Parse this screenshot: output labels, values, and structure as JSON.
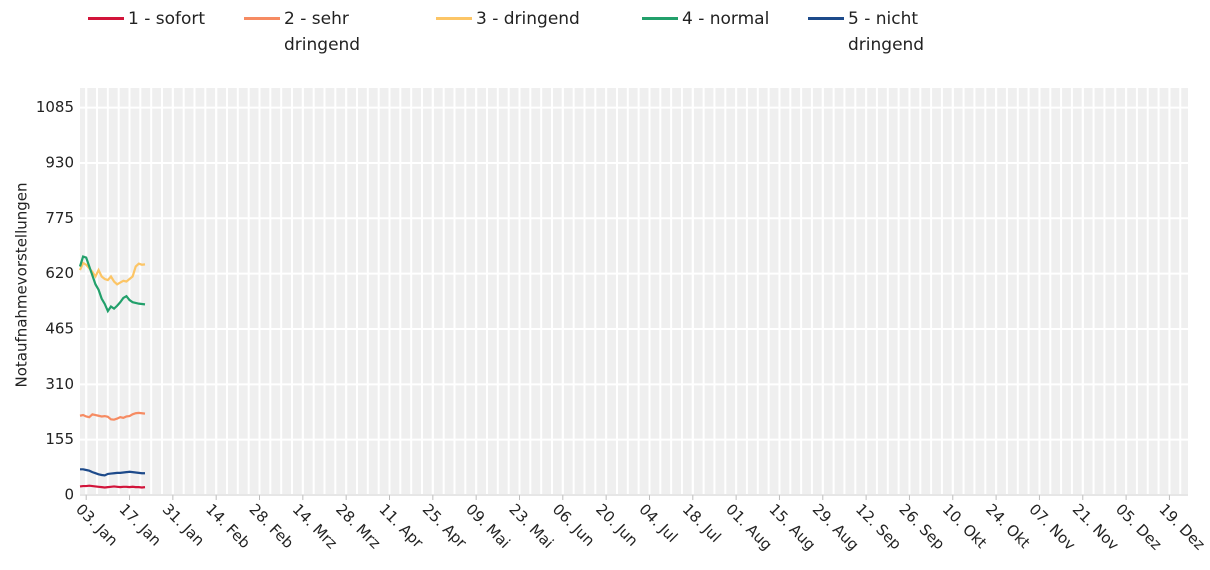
{
  "chart_data": {
    "type": "line",
    "y_label": "Notaufnahmevorstellungen",
    "x": [
      1,
      2,
      3,
      4,
      5,
      6,
      7,
      8,
      9,
      10,
      11,
      12,
      13,
      14,
      15,
      16,
      17,
      18,
      19,
      20,
      21,
      22
    ],
    "series": [
      {
        "name": "1 - sofort",
        "color": "#d2143a",
        "values": [
          24,
          25,
          25,
          26,
          25,
          24,
          23,
          22,
          21,
          22,
          23,
          24,
          23,
          22,
          23,
          23,
          22,
          23,
          22,
          22,
          21,
          22
        ]
      },
      {
        "name": "2 - sehr dringend",
        "color": "#f68b62",
        "values": [
          222,
          224,
          220,
          218,
          226,
          224,
          222,
          220,
          221,
          219,
          212,
          211,
          214,
          218,
          216,
          220,
          221,
          226,
          229,
          230,
          229,
          228
        ]
      },
      {
        "name": "3 - dringend",
        "color": "#fcc566",
        "values": [
          630,
          650,
          645,
          635,
          625,
          612,
          630,
          612,
          605,
          602,
          612,
          598,
          590,
          595,
          600,
          598,
          605,
          612,
          640,
          648,
          645,
          646
        ]
      },
      {
        "name": "4 - normal",
        "color": "#22a06b",
        "values": [
          640,
          668,
          665,
          640,
          615,
          590,
          575,
          550,
          535,
          515,
          528,
          522,
          530,
          540,
          552,
          557,
          546,
          540,
          538,
          536,
          535,
          534
        ]
      },
      {
        "name": "5 - nicht dringend",
        "color": "#1d4a8a",
        "values": [
          72,
          72,
          70,
          68,
          64,
          61,
          58,
          56,
          55,
          59,
          60,
          61,
          62,
          62,
          63,
          64,
          65,
          64,
          63,
          62,
          61,
          61
        ]
      }
    ],
    "xlim": [
      1,
      359
    ],
    "xticks": [
      {
        "value": 3,
        "label": "03. Jan"
      },
      {
        "value": 17,
        "label": "17. Jan"
      },
      {
        "value": 31,
        "label": "31. Jan"
      },
      {
        "value": 45,
        "label": "14. Feb"
      },
      {
        "value": 59,
        "label": "28. Feb"
      },
      {
        "value": 73,
        "label": "14. Mrz"
      },
      {
        "value": 87,
        "label": "28. Mrz"
      },
      {
        "value": 101,
        "label": "11. Apr"
      },
      {
        "value": 115,
        "label": "25. Apr"
      },
      {
        "value": 129,
        "label": "09. Mai"
      },
      {
        "value": 143,
        "label": "23. Mai"
      },
      {
        "value": 157,
        "label": "06. Jun"
      },
      {
        "value": 171,
        "label": "20. Jun"
      },
      {
        "value": 185,
        "label": "04. Jul"
      },
      {
        "value": 199,
        "label": "18. Jul"
      },
      {
        "value": 213,
        "label": "01. Aug"
      },
      {
        "value": 227,
        "label": "15. Aug"
      },
      {
        "value": 241,
        "label": "29. Aug"
      },
      {
        "value": 255,
        "label": "12. Sep"
      },
      {
        "value": 269,
        "label": "26. Sep"
      },
      {
        "value": 283,
        "label": "10. Okt"
      },
      {
        "value": 297,
        "label": "24. Okt"
      },
      {
        "value": 311,
        "label": "07. Nov"
      },
      {
        "value": 325,
        "label": "21. Nov"
      },
      {
        "value": 339,
        "label": "05. Dez"
      },
      {
        "value": 353,
        "label": "19. Dez"
      }
    ],
    "ylim": [
      0,
      1140
    ],
    "yticks": [
      0,
      155,
      310,
      465,
      620,
      775,
      930,
      1085
    ],
    "grid": true
  }
}
